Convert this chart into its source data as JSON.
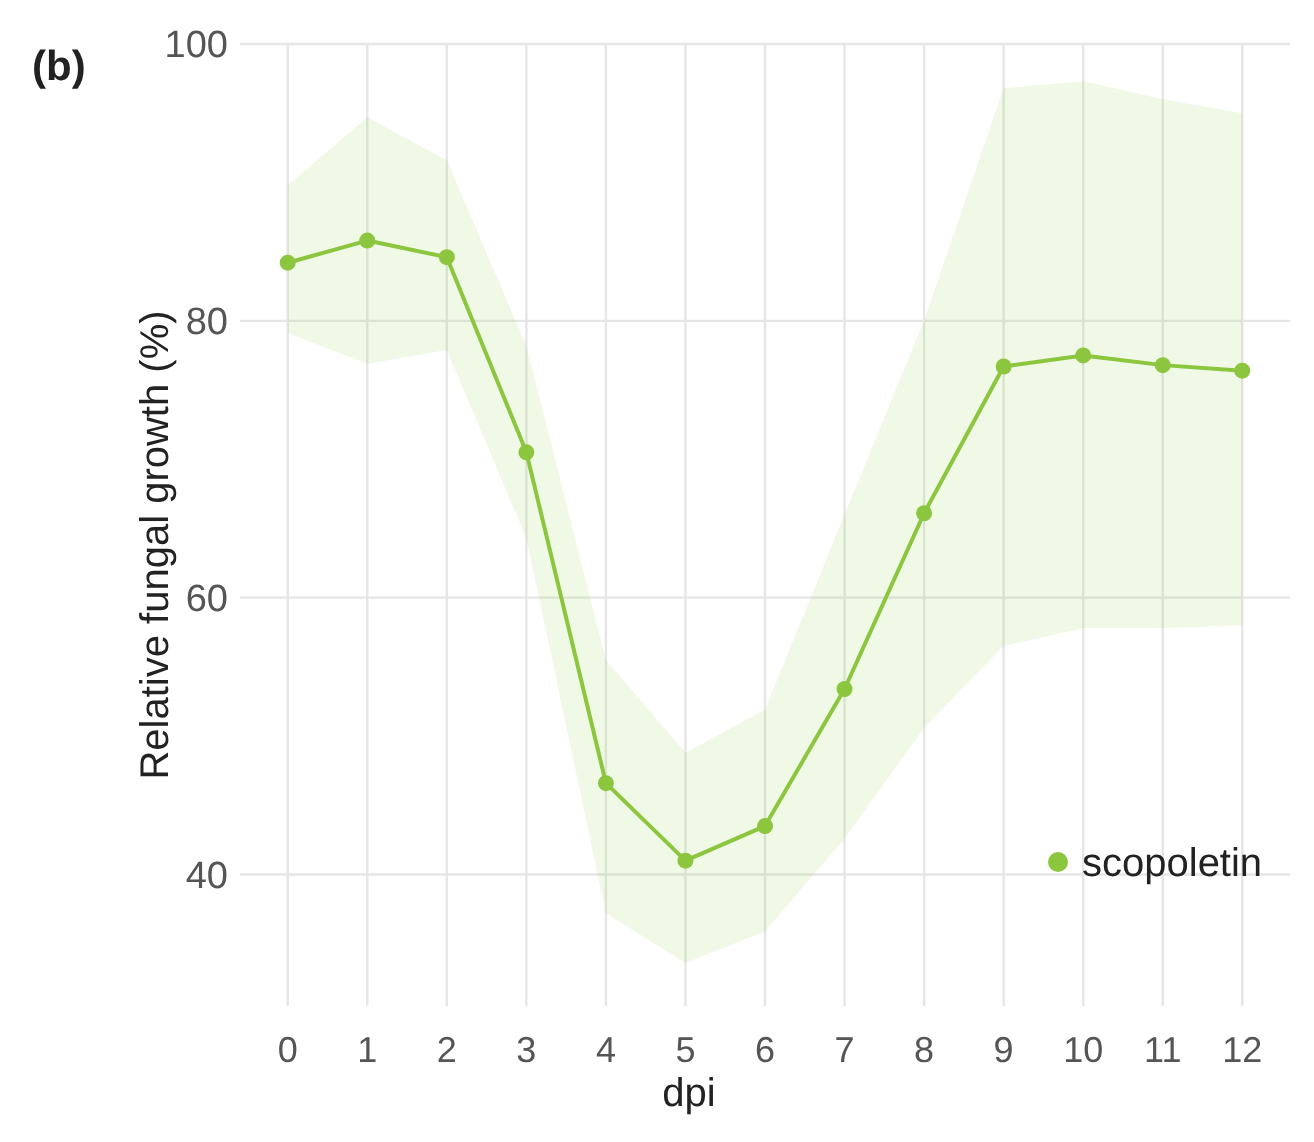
{
  "chart_data": {
    "type": "line",
    "title": "(b)",
    "xlabel": "dpi",
    "ylabel": "Relative fungal growth (%)",
    "x": [
      0,
      1,
      2,
      3,
      4,
      5,
      6,
      7,
      8,
      9,
      10,
      11,
      12
    ],
    "series": [
      {
        "name": "scopoletin",
        "color": "#8cc63f",
        "values": [
          84.2,
          85.8,
          84.6,
          70.5,
          46.6,
          41.0,
          43.5,
          53.4,
          66.1,
          76.7,
          77.5,
          76.8,
          76.4
        ],
        "lower": [
          79.1,
          76.9,
          77.9,
          64.3,
          37.2,
          33.6,
          35.9,
          42.6,
          50.6,
          56.5,
          57.8,
          57.8,
          58
        ],
        "upper": [
          89.8,
          94.7,
          91.6,
          78.2,
          55.5,
          48.8,
          51.9,
          66,
          80,
          96.8,
          97.3,
          96,
          95
        ]
      }
    ],
    "xlim": [
      -0.6,
      12.6
    ],
    "xticks": [
      0,
      1,
      2,
      3,
      4,
      5,
      6,
      7,
      8,
      9,
      10,
      11,
      12
    ],
    "ylim": [
      30.5,
      100
    ],
    "yticks": [
      40,
      60,
      80,
      100
    ],
    "grid": true,
    "legend": "bottom right",
    "marker": "circle",
    "line_style": "solid"
  }
}
